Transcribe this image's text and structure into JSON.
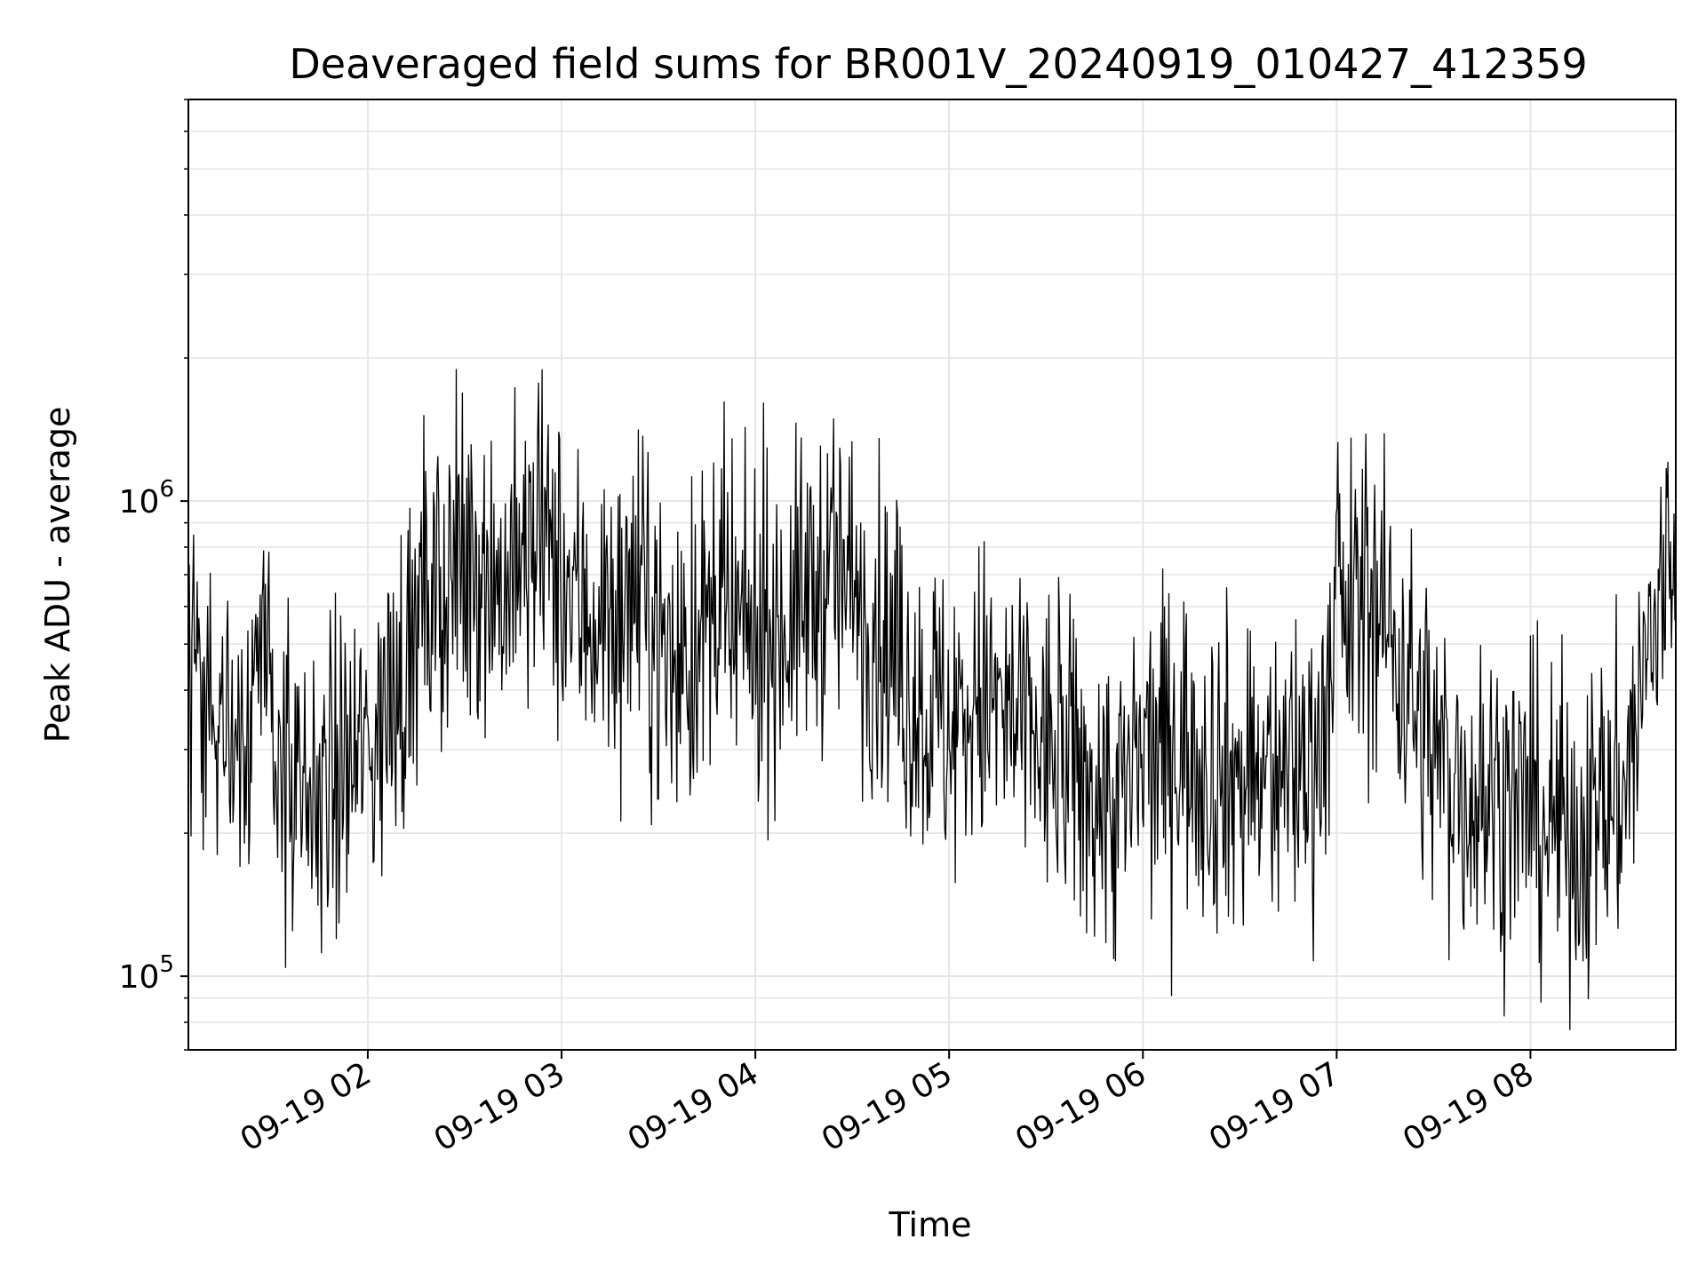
{
  "chart_data": {
    "type": "line",
    "title": "Deaveraged field sums for BR001V_20240919_010427_412359",
    "xlabel": "Time",
    "ylabel": "Peak ADU - average",
    "y_scale": "log",
    "ylim": [
      70000,
      7000000
    ],
    "xlim": [
      "2024-09-19 01:04:27",
      "2024-09-19 08:45:00"
    ],
    "x_ticks": [
      {
        "value": "2024-09-19 02:00",
        "label": "09-19 02"
      },
      {
        "value": "2024-09-19 03:00",
        "label": "09-19 03"
      },
      {
        "value": "2024-09-19 04:00",
        "label": "09-19 04"
      },
      {
        "value": "2024-09-19 05:00",
        "label": "09-19 05"
      },
      {
        "value": "2024-09-19 06:00",
        "label": "09-19 06"
      },
      {
        "value": "2024-09-19 07:00",
        "label": "09-19 07"
      },
      {
        "value": "2024-09-19 08:00",
        "label": "09-19 08"
      }
    ],
    "y_ticks": [
      {
        "value": 100000,
        "base": "10",
        "exp": "5"
      },
      {
        "value": 1000000,
        "base": "10",
        "exp": "6"
      }
    ],
    "grid": true,
    "line_color": "#000000",
    "grid_color": "#e6e6e6",
    "series": [
      {
        "x": [
          "2024-09-19 01:04:27",
          "2024-09-19 01:10",
          "2024-09-19 01:15",
          "2024-09-19 01:20",
          "2024-09-19 01:25",
          "2024-09-19 01:30",
          "2024-09-19 01:35",
          "2024-09-19 01:40",
          "2024-09-19 01:45",
          "2024-09-19 01:50",
          "2024-09-19 01:55",
          "2024-09-19 02:00",
          "2024-09-19 02:05",
          "2024-09-19 02:10",
          "2024-09-19 02:15",
          "2024-09-19 02:20",
          "2024-09-19 02:25",
          "2024-09-19 02:30",
          "2024-09-19 02:35",
          "2024-09-19 02:40",
          "2024-09-19 02:45",
          "2024-09-19 02:50",
          "2024-09-19 02:55",
          "2024-09-19 03:00",
          "2024-09-19 03:05",
          "2024-09-19 03:10",
          "2024-09-19 03:15",
          "2024-09-19 03:20",
          "2024-09-19 03:25",
          "2024-09-19 03:30",
          "2024-09-19 03:35",
          "2024-09-19 03:40",
          "2024-09-19 03:45",
          "2024-09-19 03:50",
          "2024-09-19 03:55",
          "2024-09-19 04:00",
          "2024-09-19 04:05",
          "2024-09-19 04:10",
          "2024-09-19 04:15",
          "2024-09-19 04:20",
          "2024-09-19 04:25",
          "2024-09-19 04:30",
          "2024-09-19 04:35",
          "2024-09-19 04:40",
          "2024-09-19 04:45",
          "2024-09-19 04:50",
          "2024-09-19 04:55",
          "2024-09-19 05:00",
          "2024-09-19 05:05",
          "2024-09-19 05:10",
          "2024-09-19 05:15",
          "2024-09-19 05:20",
          "2024-09-19 05:25",
          "2024-09-19 05:30",
          "2024-09-19 05:35",
          "2024-09-19 05:40",
          "2024-09-19 05:45",
          "2024-09-19 05:50",
          "2024-09-19 05:55",
          "2024-09-19 06:00",
          "2024-09-19 06:05",
          "2024-09-19 06:10",
          "2024-09-19 06:15",
          "2024-09-19 06:20",
          "2024-09-19 06:25",
          "2024-09-19 06:30",
          "2024-09-19 06:35",
          "2024-09-19 06:40",
          "2024-09-19 06:45",
          "2024-09-19 06:50",
          "2024-09-19 06:55",
          "2024-09-19 07:00",
          "2024-09-19 07:05",
          "2024-09-19 07:10",
          "2024-09-19 07:15",
          "2024-09-19 07:20",
          "2024-09-19 07:25",
          "2024-09-19 07:30",
          "2024-09-19 07:35",
          "2024-09-19 07:40",
          "2024-09-19 07:45",
          "2024-09-19 07:50",
          "2024-09-19 07:55",
          "2024-09-19 08:00",
          "2024-09-19 08:05",
          "2024-09-19 08:10",
          "2024-09-19 08:15",
          "2024-09-19 08:20",
          "2024-09-19 08:25",
          "2024-09-19 08:30",
          "2024-09-19 08:35",
          "2024-09-19 08:40",
          "2024-09-19 08:45"
        ],
        "y": [
          550000,
          400000,
          280000,
          330000,
          450000,
          380000,
          260000,
          200000,
          240000,
          260000,
          280000,
          300000,
          350000,
          420000,
          520000,
          600000,
          700000,
          650000,
          800000,
          650000,
          700000,
          750000,
          820000,
          650000,
          600000,
          580000,
          560000,
          600000,
          620000,
          520000,
          450000,
          480000,
          520000,
          560000,
          500000,
          520000,
          540000,
          560000,
          620000,
          680000,
          700000,
          650000,
          580000,
          500000,
          420000,
          380000,
          360000,
          330000,
          360000,
          380000,
          360000,
          340000,
          320000,
          300000,
          280000,
          260000,
          240000,
          230000,
          240000,
          280000,
          300000,
          320000,
          300000,
          280000,
          270000,
          260000,
          250000,
          260000,
          270000,
          280000,
          320000,
          550000,
          600000,
          620000,
          560000,
          460000,
          360000,
          300000,
          260000,
          250000,
          240000,
          240000,
          230000,
          220000,
          210000,
          200000,
          200000,
          210000,
          230000,
          260000,
          420000,
          600000,
          820000
        ]
      }
    ]
  }
}
